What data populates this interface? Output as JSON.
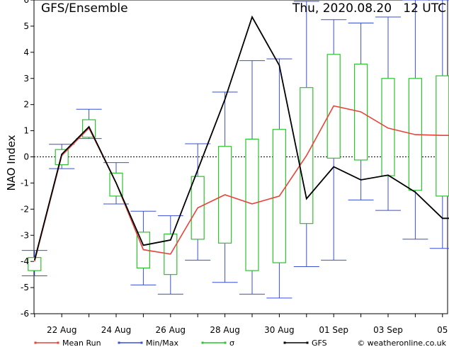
{
  "chart_data": {
    "type": "line",
    "title": "GFS/Ensemble",
    "run_label": "Thu, 2020.08.20   12 UTC",
    "ylabel": "NAO Index",
    "xlabel": "",
    "ylim": [
      -6,
      6
    ],
    "yticks": [
      -6,
      -5,
      -4,
      -3,
      -2,
      -1,
      0,
      1,
      2,
      3,
      4,
      5,
      6
    ],
    "x_ticks": [
      "22 Aug",
      "24 Aug",
      "26 Aug",
      "28 Aug",
      "30 Aug",
      "01 Sep",
      "03 Sep",
      "05"
    ],
    "x": [
      "08-20 12",
      "08-21 12",
      "08-22 12",
      "08-23 12",
      "08-24 12",
      "08-25 12",
      "08-26 12",
      "08-27 12",
      "08-28 12",
      "08-29 12",
      "08-30 12",
      "08-31 12",
      "09-01 12",
      "09-02 12",
      "09-03 12",
      "09-04 12",
      "09-05 12"
    ],
    "series": [
      {
        "name": "Mean Run",
        "color": "#e8423a",
        "values": [
          -4.0,
          0.05,
          1.1,
          -1.0,
          -3.55,
          -3.72,
          -1.95,
          -1.45,
          -1.8,
          -1.5,
          0.05,
          1.95,
          1.72,
          1.1,
          0.85,
          0.82,
          0.82
        ]
      },
      {
        "name": "GFS",
        "color": "#000000",
        "values": [
          -3.95,
          0.1,
          1.15,
          -1.0,
          -3.38,
          -3.18,
          -0.5,
          2.2,
          5.35,
          3.5,
          -1.6,
          -0.38,
          -0.88,
          -0.7,
          -1.35,
          -2.35,
          -2.35
        ]
      }
    ],
    "minmax": {
      "name": "Min/Max",
      "color": "#3a4fd6",
      "min": [
        -4.55,
        -0.45,
        0.7,
        -1.8,
        -4.9,
        -5.25,
        -3.95,
        -4.8,
        -5.25,
        -5.4,
        -4.2,
        -3.95,
        -1.65,
        -2.05,
        -3.15,
        -3.5,
        -3.5
      ],
      "max": [
        -3.58,
        0.48,
        1.82,
        -0.22,
        -2.08,
        -2.25,
        0.5,
        2.48,
        3.68,
        3.75,
        5.95,
        5.25,
        5.12,
        5.35,
        6.0,
        6.0,
        6.0
      ]
    },
    "sigma": {
      "name": "σ",
      "color": "#2ec22e",
      "low": [
        -4.35,
        -0.3,
        0.75,
        -1.5,
        -4.25,
        -4.5,
        -3.15,
        -3.3,
        -4.35,
        -4.05,
        -2.55,
        -0.05,
        -0.12,
        -0.72,
        -1.28,
        -1.5,
        -1.5
      ],
      "high": [
        -3.85,
        0.28,
        1.42,
        -0.62,
        -2.88,
        -2.95,
        -0.75,
        0.4,
        0.68,
        1.05,
        2.65,
        3.92,
        3.55,
        3.0,
        3.0,
        3.1,
        3.1
      ]
    },
    "legend": {
      "position": "bottom",
      "items": [
        {
          "label": "Mean Run",
          "color": "#e8423a"
        },
        {
          "label": "Min/Max",
          "color": "#3a4fd6"
        },
        {
          "label": "σ",
          "color": "#2ec22e"
        },
        {
          "label": "GFS",
          "color": "#000000"
        }
      ]
    },
    "credit": "© weatheronline.co.uk",
    "zero_line": "dashed"
  }
}
